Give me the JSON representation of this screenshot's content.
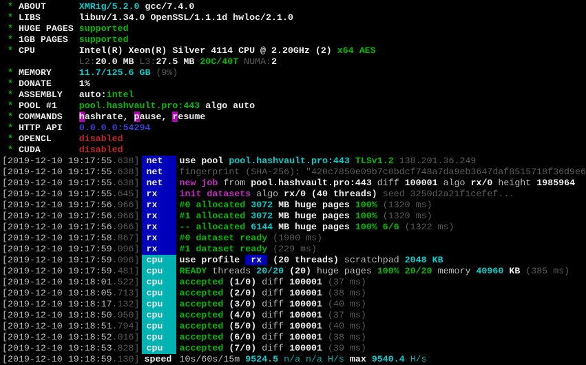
{
  "terminal": {
    "app": "XMRig miner console",
    "palette": {
      "w": "#bdbdbd",
      "W": "#ececec",
      "g": "#00bb00",
      "c": "#00b3b3",
      "C": "#00cfcf",
      "d": "#5c5c5c",
      "m": "#c32ec3",
      "r": "#c22626",
      "b": "#3e3ed2",
      "tag_net_bg": "#0000bb",
      "tag_cpu_bg": "#00b2b2",
      "hl_bg": "#bb00bb",
      "background": "#000000"
    },
    "lines": [
      {
        "n": "about-line",
        "segs": [
          [
            "g",
            " * "
          ],
          [
            "W",
            "ABOUT      "
          ],
          [
            "C",
            "XMRig/5.2.0"
          ],
          [
            "W",
            " gcc/7.4.0"
          ]
        ]
      },
      {
        "n": "libs-line",
        "segs": [
          [
            "g",
            " * "
          ],
          [
            "W",
            "LIBS       "
          ],
          [
            "W",
            "libuv/1.34.0 OpenSSL/1.1.1d hwloc/2.1.0"
          ]
        ]
      },
      {
        "n": "huge-pages-line",
        "segs": [
          [
            "g",
            " * "
          ],
          [
            "W",
            "HUGE PAGES "
          ],
          [
            "g",
            "supported"
          ]
        ]
      },
      {
        "n": "1gb-pages-line",
        "segs": [
          [
            "g",
            " * "
          ],
          [
            "W",
            "1GB PAGES  "
          ],
          [
            "g",
            "supported"
          ]
        ]
      },
      {
        "n": "cpu-line",
        "segs": [
          [
            "g",
            " * "
          ],
          [
            "W",
            "CPU        "
          ],
          [
            "W",
            "Intel(R) Xeon(R) Silver 4114 CPU @ 2.20GHz (2) "
          ],
          [
            "g",
            "x64 AES"
          ]
        ]
      },
      {
        "n": "cpu-cache-line",
        "segs": [
          [
            "w",
            "              "
          ],
          [
            "d",
            "L2:"
          ],
          [
            "W",
            "20.0 MB "
          ],
          [
            "d",
            "L3:"
          ],
          [
            "W",
            "27.5 MB "
          ],
          [
            "g",
            "20C/40T "
          ],
          [
            "d",
            "NUMA:"
          ],
          [
            "W",
            "2"
          ]
        ]
      },
      {
        "n": "memory-line",
        "segs": [
          [
            "g",
            " * "
          ],
          [
            "W",
            "MEMORY     "
          ],
          [
            "C",
            "11.7/125.6 GB "
          ],
          [
            "d",
            "(9%)"
          ]
        ]
      },
      {
        "n": "donate-line",
        "segs": [
          [
            "g",
            " * "
          ],
          [
            "W",
            "DONATE     "
          ],
          [
            "W",
            "1%"
          ]
        ]
      },
      {
        "n": "assembly-line",
        "segs": [
          [
            "g",
            " * "
          ],
          [
            "W",
            "ASSEMBLY   "
          ],
          [
            "W",
            "auto:"
          ],
          [
            "g",
            "intel"
          ]
        ]
      },
      {
        "n": "pool-line",
        "segs": [
          [
            "g",
            " * "
          ],
          [
            "W",
            "POOL #1    "
          ],
          [
            "g",
            "pool.hashvault.pro:443"
          ],
          [
            "W",
            " algo auto"
          ]
        ]
      },
      {
        "n": "commands-line",
        "segs": [
          [
            "g",
            " * "
          ],
          [
            "W",
            "COMMANDS   "
          ],
          [
            "hl",
            "h"
          ],
          [
            "W",
            "ashrate, "
          ],
          [
            "hl",
            "p"
          ],
          [
            "W",
            "ause, "
          ],
          [
            "hl",
            "r"
          ],
          [
            "W",
            "esume"
          ]
        ]
      },
      {
        "n": "http-api-line",
        "segs": [
          [
            "g",
            " * "
          ],
          [
            "W",
            "HTTP API   "
          ],
          [
            "b",
            "0.0.0.0:54294"
          ]
        ]
      },
      {
        "n": "opencl-line",
        "segs": [
          [
            "g",
            " * "
          ],
          [
            "W",
            "OPENCL     "
          ],
          [
            "r",
            "disabled"
          ]
        ]
      },
      {
        "n": "cuda-line",
        "segs": [
          [
            "g",
            " * "
          ],
          [
            "W",
            "CUDA       "
          ],
          [
            "r",
            "disabled"
          ]
        ]
      },
      {
        "n": "log-use-pool",
        "segs": [
          [
            "w",
            "[2019-12-10 19:17:55"
          ],
          [
            "d",
            ".638]"
          ],
          [
            "tn",
            "net"
          ],
          [
            "W",
            "use pool "
          ],
          [
            "C",
            "pool.hashvault.pro:443 "
          ],
          [
            "g",
            "TLSv1.2 "
          ],
          [
            "d",
            "138.201.36.249"
          ]
        ]
      },
      {
        "n": "log-fingerprint",
        "segs": [
          [
            "w",
            "[2019-12-10 19:17:55"
          ],
          [
            "d",
            ".638]"
          ],
          [
            "tn",
            "net"
          ],
          [
            "d",
            "fingerprint (SHA-256): \"420c7850e09b7c0bdcf748a7da9eb3647daf8515718f36d9e6"
          ]
        ]
      },
      {
        "n": "log-new-job",
        "segs": [
          [
            "w",
            "[2019-12-10 19:17:55"
          ],
          [
            "d",
            ".638]"
          ],
          [
            "tn",
            "net"
          ],
          [
            "m",
            "new job"
          ],
          [
            "w",
            " from "
          ],
          [
            "W",
            "pool.hashvault.pro:443"
          ],
          [
            "w",
            " diff "
          ],
          [
            "W",
            "100001"
          ],
          [
            "w",
            " algo "
          ],
          [
            "W",
            "rx/0"
          ],
          [
            "w",
            " height "
          ],
          [
            "W",
            "1985964"
          ]
        ]
      },
      {
        "n": "log-init-datasets",
        "segs": [
          [
            "w",
            "[2019-12-10 19:17:55"
          ],
          [
            "d",
            ".645]"
          ],
          [
            "tn",
            "rx"
          ],
          [
            "m",
            "init datasets"
          ],
          [
            "w",
            " algo "
          ],
          [
            "W",
            "rx/0 (40 threads)"
          ],
          [
            "d",
            " seed 3250d2a21f1cefef..."
          ]
        ]
      },
      {
        "n": "log-alloc-0",
        "segs": [
          [
            "w",
            "[2019-12-10 19:17:56"
          ],
          [
            "d",
            ".966]"
          ],
          [
            "tn",
            "rx"
          ],
          [
            "g",
            "#0 allocated "
          ],
          [
            "C",
            "3072 "
          ],
          [
            "W",
            "MB huge pages "
          ],
          [
            "g",
            "100%"
          ],
          [
            "d",
            " (1320 ms)"
          ]
        ]
      },
      {
        "n": "log-alloc-1",
        "segs": [
          [
            "w",
            "[2019-12-10 19:17:56"
          ],
          [
            "d",
            ".966]"
          ],
          [
            "tn",
            "rx"
          ],
          [
            "g",
            "#1 allocated "
          ],
          [
            "C",
            "3072 "
          ],
          [
            "W",
            "MB huge pages "
          ],
          [
            "g",
            "100%"
          ],
          [
            "d",
            " (1320 ms)"
          ]
        ]
      },
      {
        "n": "log-alloc-total",
        "segs": [
          [
            "w",
            "[2019-12-10 19:17:56"
          ],
          [
            "d",
            ".966]"
          ],
          [
            "tn",
            "rx"
          ],
          [
            "g",
            "-- allocated "
          ],
          [
            "C",
            "6144 "
          ],
          [
            "W",
            "MB huge pages "
          ],
          [
            "g",
            "100% 6/6"
          ],
          [
            "d",
            " (1322 ms)"
          ]
        ]
      },
      {
        "n": "log-dataset-ready-0",
        "segs": [
          [
            "w",
            "[2019-12-10 19:17:58"
          ],
          [
            "d",
            ".867]"
          ],
          [
            "tn",
            "rx"
          ],
          [
            "g",
            "#0 dataset ready"
          ],
          [
            "d",
            " (1900 ms)"
          ]
        ]
      },
      {
        "n": "log-dataset-ready-1",
        "segs": [
          [
            "w",
            "[2019-12-10 19:17:59"
          ],
          [
            "d",
            ".096]"
          ],
          [
            "tn",
            "rx"
          ],
          [
            "g",
            "#1 dataset ready"
          ],
          [
            "d",
            " (229 ms)"
          ]
        ]
      },
      {
        "n": "log-use-profile",
        "segs": [
          [
            "w",
            "[2019-12-10 19:17:59"
          ],
          [
            "d",
            ".096]"
          ],
          [
            "tc",
            "cpu"
          ],
          [
            "W",
            "use profile "
          ],
          [
            "rxhl",
            " rx "
          ],
          [
            "W",
            " (20 threads)"
          ],
          [
            "w",
            " scratchpad "
          ],
          [
            "C",
            "2048 KB"
          ]
        ]
      },
      {
        "n": "log-ready-threads",
        "segs": [
          [
            "w",
            "[2019-12-10 19:17:59"
          ],
          [
            "d",
            ".481]"
          ],
          [
            "tc",
            "cpu"
          ],
          [
            "g",
            "READY"
          ],
          [
            "w",
            " threads "
          ],
          [
            "C",
            "20/20"
          ],
          [
            "W",
            " (20)"
          ],
          [
            "w",
            " huge pages "
          ],
          [
            "g",
            "100% 20/20"
          ],
          [
            "w",
            " memory "
          ],
          [
            "C",
            "40960 "
          ],
          [
            "W",
            "KB"
          ],
          [
            "d",
            " (385 ms)"
          ]
        ]
      },
      {
        "n": "log-accepted-1",
        "segs": [
          [
            "w",
            "[2019-12-10 19:18:01"
          ],
          [
            "d",
            ".522]"
          ],
          [
            "tc",
            "cpu"
          ],
          [
            "g",
            "accepted"
          ],
          [
            "W",
            " (1/0)"
          ],
          [
            "w",
            " diff "
          ],
          [
            "W",
            "100001"
          ],
          [
            "d",
            " (37 ms)"
          ]
        ]
      },
      {
        "n": "log-accepted-2",
        "segs": [
          [
            "w",
            "[2019-12-10 19:18:05"
          ],
          [
            "d",
            ".713]"
          ],
          [
            "tc",
            "cpu"
          ],
          [
            "g",
            "accepted"
          ],
          [
            "W",
            " (2/0)"
          ],
          [
            "w",
            " diff "
          ],
          [
            "W",
            "100001"
          ],
          [
            "d",
            " (38 ms)"
          ]
        ]
      },
      {
        "n": "log-accepted-3",
        "segs": [
          [
            "w",
            "[2019-12-10 19:18:17"
          ],
          [
            "d",
            ".132]"
          ],
          [
            "tc",
            "cpu"
          ],
          [
            "g",
            "accepted"
          ],
          [
            "W",
            " (3/0)"
          ],
          [
            "w",
            " diff "
          ],
          [
            "W",
            "100001"
          ],
          [
            "d",
            " (40 ms)"
          ]
        ]
      },
      {
        "n": "log-accepted-4",
        "segs": [
          [
            "w",
            "[2019-12-10 19:18:50"
          ],
          [
            "d",
            ".950]"
          ],
          [
            "tc",
            "cpu"
          ],
          [
            "g",
            "accepted"
          ],
          [
            "W",
            " (4/0)"
          ],
          [
            "w",
            " diff "
          ],
          [
            "W",
            "100001"
          ],
          [
            "d",
            " (37 ms)"
          ]
        ]
      },
      {
        "n": "log-accepted-5",
        "segs": [
          [
            "w",
            "[2019-12-10 19:18:51"
          ],
          [
            "d",
            ".794]"
          ],
          [
            "tc",
            "cpu"
          ],
          [
            "g",
            "accepted"
          ],
          [
            "W",
            " (5/0)"
          ],
          [
            "w",
            " diff "
          ],
          [
            "W",
            "100001"
          ],
          [
            "d",
            " (40 ms)"
          ]
        ]
      },
      {
        "n": "log-accepted-6",
        "segs": [
          [
            "w",
            "[2019-12-10 19:18:52"
          ],
          [
            "d",
            ".016]"
          ],
          [
            "tc",
            "cpu"
          ],
          [
            "g",
            "accepted"
          ],
          [
            "W",
            " (6/0)"
          ],
          [
            "w",
            " diff "
          ],
          [
            "W",
            "100001"
          ],
          [
            "d",
            " (38 ms)"
          ]
        ]
      },
      {
        "n": "log-accepted-7",
        "segs": [
          [
            "w",
            "[2019-12-10 19:18:53"
          ],
          [
            "d",
            ".828]"
          ],
          [
            "tc",
            "cpu"
          ],
          [
            "g",
            "accepted"
          ],
          [
            "W",
            " (7/0)"
          ],
          [
            "w",
            " diff "
          ],
          [
            "W",
            "100001"
          ],
          [
            "d",
            " (39 ms)"
          ]
        ]
      },
      {
        "n": "log-speed",
        "segs": [
          [
            "w",
            "[2019-12-10 19:18:59"
          ],
          [
            "d",
            ".130]"
          ],
          [
            "tp",
            "speed"
          ],
          [
            "w",
            "10s/60s/15m "
          ],
          [
            "C",
            "9524.5 "
          ],
          [
            "c",
            "n/a n/a "
          ],
          [
            "c",
            "H/s"
          ],
          [
            "W",
            " max "
          ],
          [
            "C",
            "9540.4 "
          ],
          [
            "c",
            "H/s"
          ]
        ]
      }
    ]
  }
}
